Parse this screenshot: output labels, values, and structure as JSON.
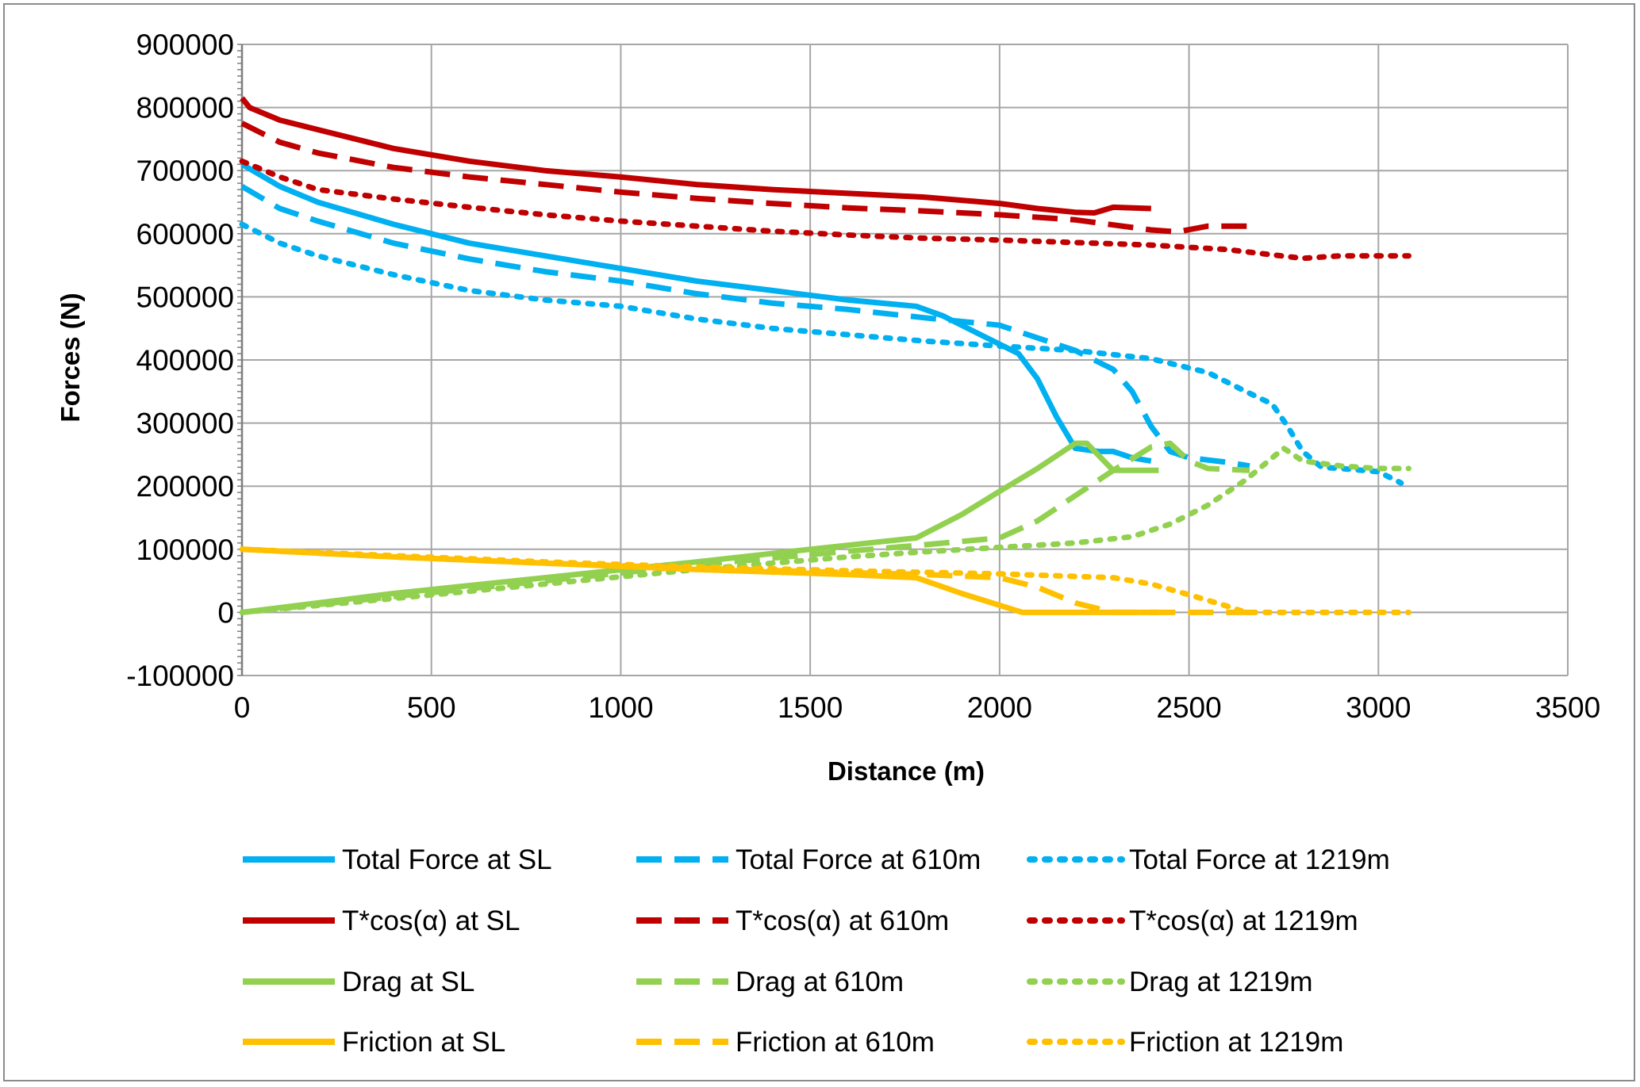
{
  "chart_data": {
    "type": "line",
    "title": "",
    "xlabel": "Distance (m)",
    "ylabel": "Forces (N)",
    "xlim": [
      0,
      3500
    ],
    "ylim": [
      -100000,
      900000
    ],
    "x_ticks": [
      "0",
      "500",
      "1000",
      "1500",
      "2000",
      "2500",
      "3000",
      "3500"
    ],
    "y_ticks": [
      "-100000",
      "0",
      "100000",
      "200000",
      "300000",
      "400000",
      "500000",
      "600000",
      "700000",
      "800000",
      "900000"
    ],
    "grid": true,
    "legend_position": "bottom",
    "series": [
      {
        "name": "Total Force at SL",
        "color": "#00b0f0",
        "style": "solid",
        "points": [
          [
            0,
            710000
          ],
          [
            100,
            675000
          ],
          [
            200,
            650000
          ],
          [
            400,
            615000
          ],
          [
            600,
            585000
          ],
          [
            800,
            565000
          ],
          [
            1000,
            545000
          ],
          [
            1200,
            525000
          ],
          [
            1400,
            510000
          ],
          [
            1600,
            495000
          ],
          [
            1780,
            485000
          ],
          [
            1850,
            470000
          ],
          [
            1950,
            440000
          ],
          [
            2050,
            410000
          ],
          [
            2100,
            370000
          ],
          [
            2150,
            310000
          ],
          [
            2200,
            260000
          ],
          [
            2260,
            255000
          ],
          [
            2300,
            255000
          ],
          [
            2350,
            245000
          ],
          [
            2400,
            240000
          ]
        ]
      },
      {
        "name": "Total Force at 610m",
        "color": "#00b0f0",
        "style": "dash",
        "points": [
          [
            0,
            675000
          ],
          [
            100,
            640000
          ],
          [
            200,
            620000
          ],
          [
            400,
            585000
          ],
          [
            600,
            560000
          ],
          [
            800,
            540000
          ],
          [
            1000,
            525000
          ],
          [
            1200,
            505000
          ],
          [
            1400,
            490000
          ],
          [
            1600,
            480000
          ],
          [
            1800,
            467000
          ],
          [
            2000,
            455000
          ],
          [
            2200,
            415000
          ],
          [
            2300,
            385000
          ],
          [
            2350,
            350000
          ],
          [
            2400,
            295000
          ],
          [
            2450,
            255000
          ],
          [
            2500,
            245000
          ],
          [
            2600,
            238000
          ],
          [
            2660,
            232000
          ]
        ]
      },
      {
        "name": "Total Force at 1219m",
        "color": "#00b0f0",
        "style": "dot",
        "points": [
          [
            0,
            615000
          ],
          [
            100,
            585000
          ],
          [
            200,
            565000
          ],
          [
            400,
            535000
          ],
          [
            600,
            510000
          ],
          [
            800,
            495000
          ],
          [
            1000,
            485000
          ],
          [
            1200,
            465000
          ],
          [
            1400,
            450000
          ],
          [
            1600,
            440000
          ],
          [
            1800,
            430000
          ],
          [
            2000,
            422000
          ],
          [
            2200,
            415000
          ],
          [
            2400,
            402000
          ],
          [
            2550,
            380000
          ],
          [
            2650,
            350000
          ],
          [
            2720,
            330000
          ],
          [
            2760,
            295000
          ],
          [
            2800,
            255000
          ],
          [
            2850,
            230000
          ],
          [
            2900,
            228000
          ],
          [
            3000,
            223000
          ],
          [
            3060,
            205000
          ]
        ]
      },
      {
        "name": "T*cos(α) at SL",
        "color": "#c00000",
        "style": "solid",
        "points": [
          [
            0,
            815000
          ],
          [
            20,
            800000
          ],
          [
            100,
            780000
          ],
          [
            200,
            765000
          ],
          [
            400,
            735000
          ],
          [
            600,
            715000
          ],
          [
            800,
            700000
          ],
          [
            1000,
            690000
          ],
          [
            1200,
            678000
          ],
          [
            1400,
            670000
          ],
          [
            1600,
            664000
          ],
          [
            1800,
            658000
          ],
          [
            2000,
            648000
          ],
          [
            2100,
            640000
          ],
          [
            2200,
            634000
          ],
          [
            2250,
            633000
          ],
          [
            2300,
            642000
          ],
          [
            2400,
            640000
          ]
        ]
      },
      {
        "name": "T*cos(α) at 610m",
        "color": "#c00000",
        "style": "dash",
        "points": [
          [
            0,
            775000
          ],
          [
            100,
            745000
          ],
          [
            200,
            728000
          ],
          [
            400,
            705000
          ],
          [
            600,
            690000
          ],
          [
            800,
            678000
          ],
          [
            1000,
            666000
          ],
          [
            1200,
            656000
          ],
          [
            1400,
            648000
          ],
          [
            1600,
            641000
          ],
          [
            1800,
            636000
          ],
          [
            2000,
            630000
          ],
          [
            2200,
            622000
          ],
          [
            2300,
            614000
          ],
          [
            2400,
            606000
          ],
          [
            2470,
            603000
          ],
          [
            2550,
            612000
          ],
          [
            2660,
            612000
          ]
        ]
      },
      {
        "name": "T*cos(α) at 1219m",
        "color": "#c00000",
        "style": "dot",
        "points": [
          [
            0,
            715000
          ],
          [
            100,
            690000
          ],
          [
            200,
            670000
          ],
          [
            400,
            655000
          ],
          [
            600,
            642000
          ],
          [
            800,
            630000
          ],
          [
            1000,
            620000
          ],
          [
            1200,
            612000
          ],
          [
            1400,
            604000
          ],
          [
            1600,
            598000
          ],
          [
            1800,
            593000
          ],
          [
            2000,
            590000
          ],
          [
            2200,
            586000
          ],
          [
            2400,
            582000
          ],
          [
            2600,
            575000
          ],
          [
            2700,
            568000
          ],
          [
            2800,
            561000
          ],
          [
            2900,
            565000
          ],
          [
            3000,
            565000
          ],
          [
            3080,
            565000
          ]
        ]
      },
      {
        "name": "Drag at SL",
        "color": "#92d050",
        "style": "solid",
        "points": [
          [
            0,
            0
          ],
          [
            400,
            30000
          ],
          [
            800,
            55000
          ],
          [
            1200,
            80000
          ],
          [
            1500,
            100000
          ],
          [
            1780,
            118000
          ],
          [
            1900,
            155000
          ],
          [
            2000,
            192000
          ],
          [
            2100,
            228000
          ],
          [
            2200,
            268000
          ],
          [
            2230,
            268000
          ],
          [
            2300,
            225000
          ],
          [
            2420,
            225000
          ]
        ]
      },
      {
        "name": "Drag at 610m",
        "color": "#92d050",
        "style": "dash",
        "points": [
          [
            0,
            0
          ],
          [
            400,
            25000
          ],
          [
            800,
            50000
          ],
          [
            1200,
            75000
          ],
          [
            1600,
            97000
          ],
          [
            1800,
            107000
          ],
          [
            2000,
            118000
          ],
          [
            2100,
            145000
          ],
          [
            2200,
            185000
          ],
          [
            2300,
            225000
          ],
          [
            2400,
            262000
          ],
          [
            2450,
            268000
          ],
          [
            2500,
            240000
          ],
          [
            2550,
            228000
          ],
          [
            2660,
            225000
          ]
        ]
      },
      {
        "name": "Drag at 1219m",
        "color": "#92d050",
        "style": "dot",
        "points": [
          [
            0,
            0
          ],
          [
            400,
            22000
          ],
          [
            800,
            45000
          ],
          [
            1200,
            68000
          ],
          [
            1600,
            88000
          ],
          [
            1800,
            96000
          ],
          [
            2000,
            103000
          ],
          [
            2200,
            110000
          ],
          [
            2350,
            120000
          ],
          [
            2450,
            140000
          ],
          [
            2550,
            170000
          ],
          [
            2650,
            210000
          ],
          [
            2750,
            260000
          ],
          [
            2800,
            240000
          ],
          [
            2900,
            232000
          ],
          [
            3000,
            228000
          ],
          [
            3080,
            228000
          ]
        ]
      },
      {
        "name": "Friction at SL",
        "color": "#ffc000",
        "style": "solid",
        "points": [
          [
            0,
            100000
          ],
          [
            400,
            88000
          ],
          [
            800,
            78000
          ],
          [
            1200,
            68000
          ],
          [
            1600,
            60000
          ],
          [
            1780,
            55000
          ],
          [
            1900,
            30000
          ],
          [
            2060,
            0
          ],
          [
            2420,
            0
          ]
        ]
      },
      {
        "name": "Friction at 610m",
        "color": "#ffc000",
        "style": "dash",
        "points": [
          [
            0,
            100000
          ],
          [
            400,
            88000
          ],
          [
            800,
            78000
          ],
          [
            1200,
            70000
          ],
          [
            1600,
            63000
          ],
          [
            1800,
            60000
          ],
          [
            2000,
            55000
          ],
          [
            2100,
            40000
          ],
          [
            2200,
            15000
          ],
          [
            2300,
            0
          ],
          [
            2660,
            0
          ]
        ]
      },
      {
        "name": "Friction at 1219m",
        "color": "#ffc000",
        "style": "dot",
        "points": [
          [
            0,
            100000
          ],
          [
            400,
            90000
          ],
          [
            800,
            80000
          ],
          [
            1200,
            72000
          ],
          [
            1600,
            66000
          ],
          [
            2000,
            61000
          ],
          [
            2300,
            55000
          ],
          [
            2400,
            45000
          ],
          [
            2500,
            28000
          ],
          [
            2600,
            10000
          ],
          [
            2650,
            0
          ],
          [
            3080,
            0
          ]
        ]
      }
    ]
  }
}
